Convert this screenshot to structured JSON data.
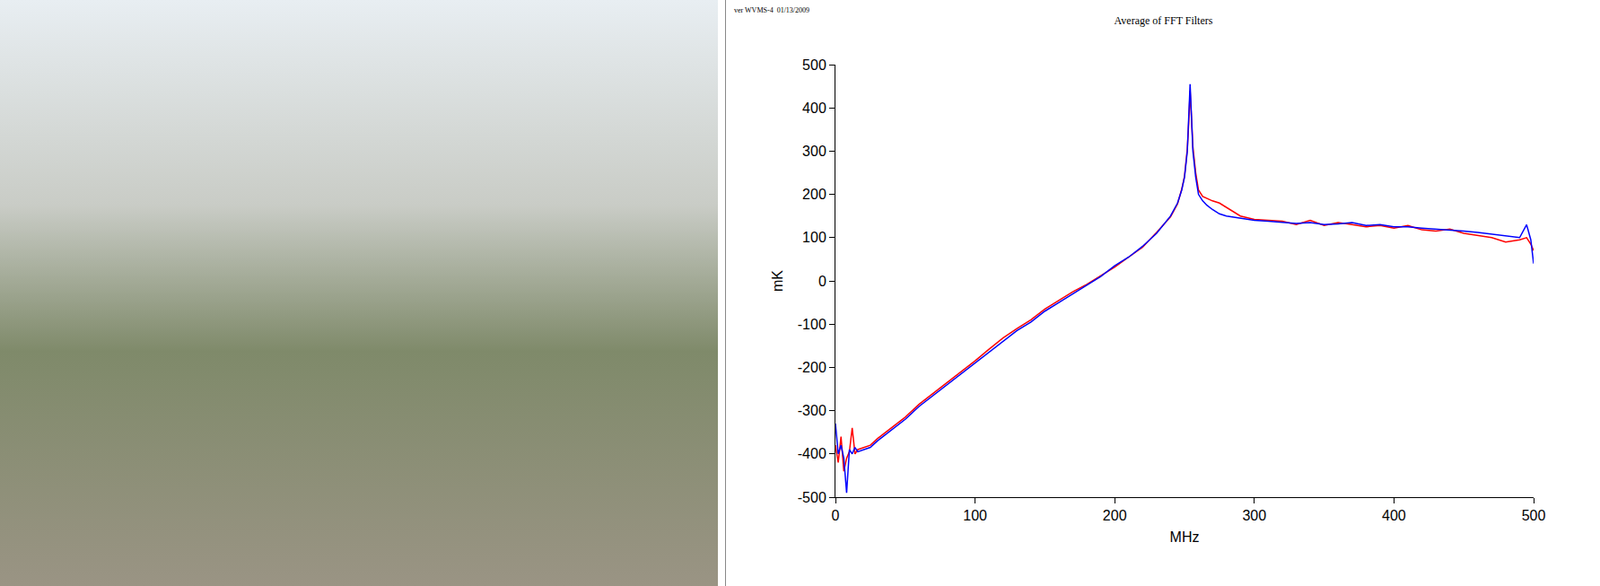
{
  "chart_data": {
    "type": "line",
    "title": "Average of FFT Filters",
    "annotations": [
      "ver WVMS-4  01/13/2009"
    ],
    "x_label": "MHz",
    "y_label": "mK",
    "x": [
      0,
      2,
      4,
      6,
      8,
      10,
      12,
      14,
      16,
      20,
      25,
      30,
      40,
      50,
      60,
      70,
      80,
      90,
      100,
      110,
      120,
      130,
      140,
      150,
      160,
      170,
      180,
      190,
      200,
      210,
      220,
      230,
      240,
      245,
      248,
      250,
      252,
      253,
      254,
      255,
      256,
      258,
      260,
      263,
      266,
      270,
      275,
      280,
      290,
      300,
      310,
      320,
      330,
      340,
      350,
      360,
      370,
      380,
      390,
      400,
      410,
      420,
      430,
      440,
      450,
      460,
      470,
      480,
      490,
      495,
      498,
      500
    ],
    "series": [
      {
        "color": "#ff0000",
        "values": [
          -380,
          -420,
          -360,
          -440,
          -410,
          -395,
          -340,
          -400,
          -390,
          -385,
          -380,
          -365,
          -340,
          -315,
          -285,
          -260,
          -235,
          -210,
          -185,
          -158,
          -132,
          -110,
          -90,
          -65,
          -45,
          -25,
          -8,
          12,
          32,
          55,
          78,
          112,
          148,
          178,
          212,
          242,
          305,
          365,
          440,
          375,
          310,
          250,
          210,
          195,
          190,
          185,
          180,
          170,
          150,
          142,
          140,
          138,
          130,
          140,
          128,
          135,
          130,
          125,
          128,
          122,
          128,
          118,
          115,
          120,
          110,
          105,
          100,
          90,
          95,
          100,
          85,
          70
        ]
      },
      {
        "color": "#0000ff",
        "values": [
          -330,
          -400,
          -380,
          -410,
          -490,
          -390,
          -400,
          -385,
          -395,
          -390,
          -385,
          -370,
          -345,
          -320,
          -290,
          -265,
          -240,
          -215,
          -190,
          -165,
          -140,
          -115,
          -95,
          -70,
          -50,
          -30,
          -10,
          10,
          35,
          55,
          80,
          110,
          150,
          180,
          210,
          240,
          300,
          370,
          455,
          380,
          300,
          240,
          200,
          185,
          175,
          165,
          155,
          150,
          145,
          140,
          138,
          135,
          133,
          135,
          130,
          132,
          135,
          128,
          130,
          125,
          125,
          122,
          120,
          118,
          115,
          112,
          108,
          105,
          100,
          130,
          95,
          40
        ]
      }
    ],
    "xlim": [
      0,
      500
    ],
    "ylim": [
      -500,
      500
    ],
    "xticks": [
      0,
      100,
      200,
      300,
      400,
      500
    ],
    "yticks": [
      -500,
      -400,
      -300,
      -200,
      -100,
      0,
      100,
      200,
      300,
      400,
      500
    ],
    "grid": false,
    "line_style": "solid"
  }
}
